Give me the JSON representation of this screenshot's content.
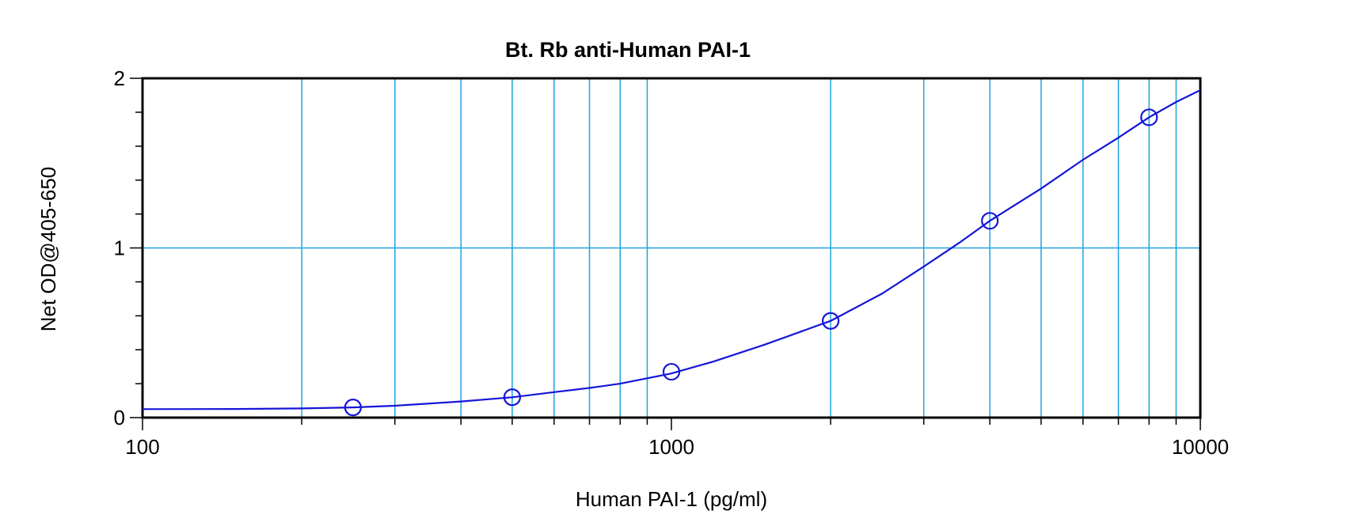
{
  "chart_data": {
    "type": "scatter",
    "title": "Bt. Rb anti-Human PAI-1",
    "xlabel": "Human PAI-1 (pg/ml)",
    "ylabel": "Net OD@405-650",
    "x_scale": "log",
    "xlim": [
      100,
      10000
    ],
    "ylim": [
      0,
      2
    ],
    "x_major_ticks": [
      100,
      1000,
      10000
    ],
    "x_tick_labels": [
      "100",
      "1000",
      "10000"
    ],
    "y_major_ticks": [
      0,
      1,
      2
    ],
    "y_tick_labels": [
      "0",
      "1",
      "2"
    ],
    "grid": true,
    "series": [
      {
        "x": [
          250,
          500,
          1000,
          2000,
          4000,
          8000
        ],
        "y": [
          0.06,
          0.12,
          0.27,
          0.57,
          1.16,
          1.77
        ]
      }
    ],
    "fit_curve": {
      "x": [
        100,
        150,
        200,
        250,
        300,
        400,
        500,
        600,
        700,
        800,
        1000,
        1200,
        1500,
        2000,
        2500,
        3000,
        3500,
        4000,
        5000,
        6000,
        7000,
        8000,
        9000,
        10000
      ],
      "y": [
        0.05,
        0.051,
        0.054,
        0.06,
        0.07,
        0.095,
        0.12,
        0.15,
        0.175,
        0.2,
        0.26,
        0.33,
        0.43,
        0.57,
        0.73,
        0.89,
        1.03,
        1.16,
        1.35,
        1.52,
        1.65,
        1.77,
        1.86,
        1.93
      ]
    },
    "colors": {
      "series": "#1515d8",
      "grid": "#1fa3e0",
      "frame": "#000000"
    }
  }
}
